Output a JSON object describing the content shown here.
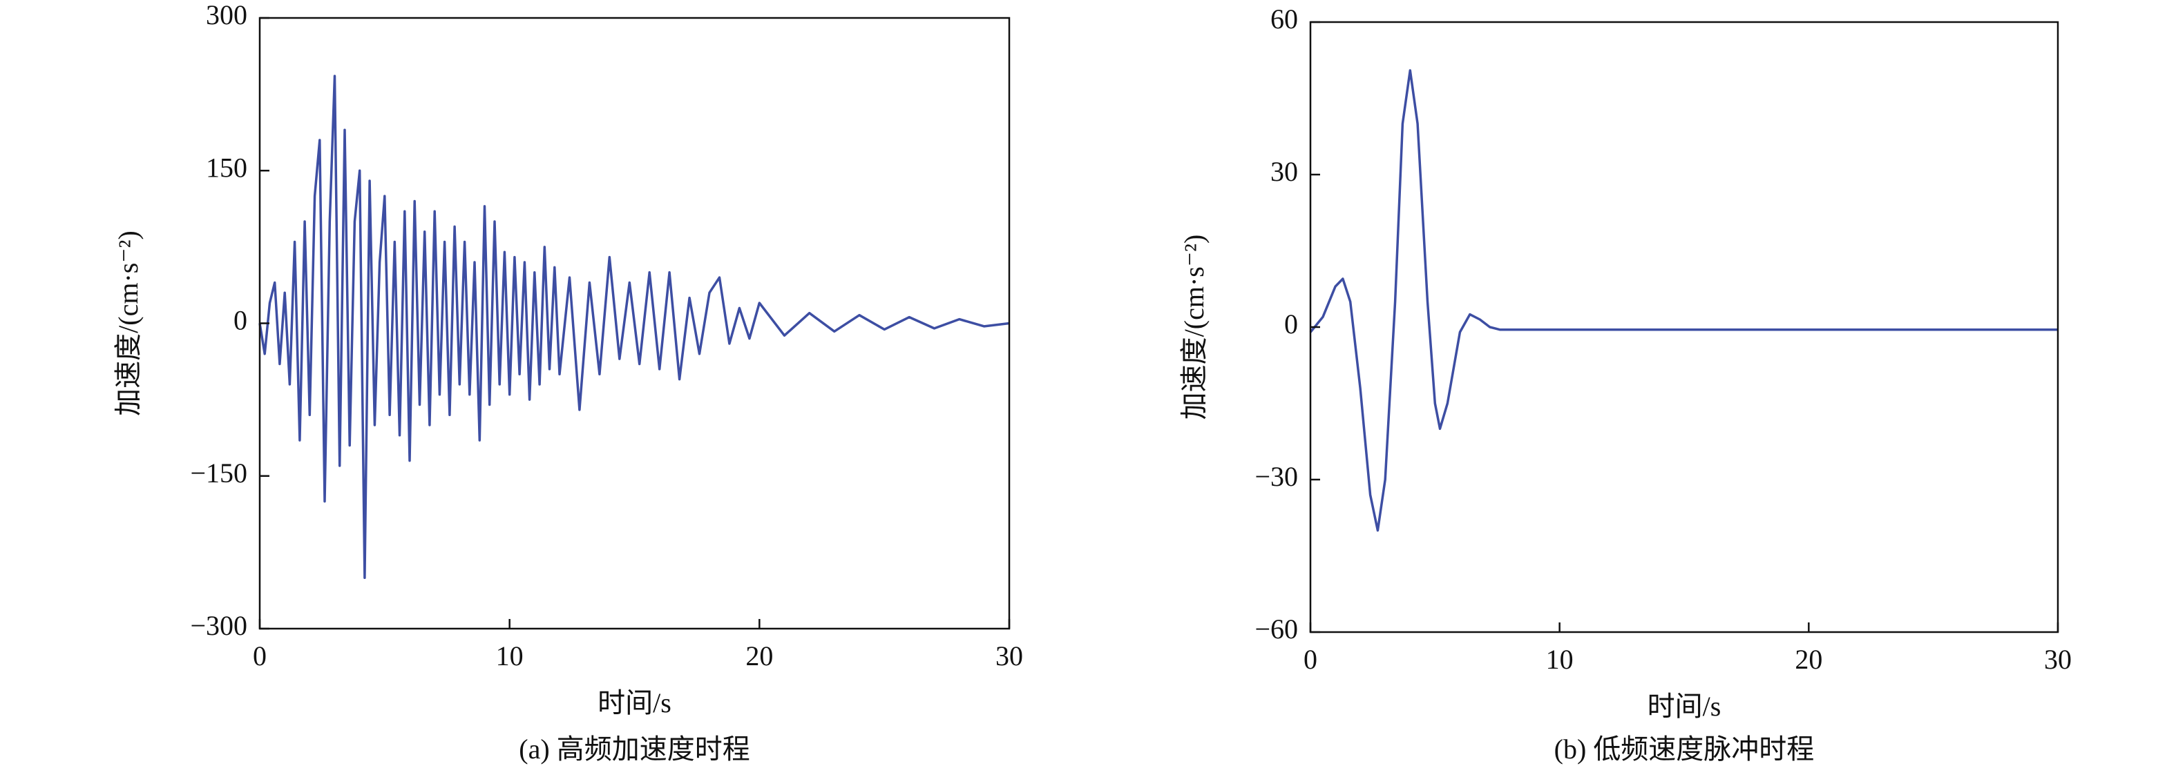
{
  "chart_data": [
    {
      "type": "line",
      "caption": "(a) 高频加速度时程",
      "xlabel": "时间/s",
      "ylabel": "加速度/(cm·s⁻²)",
      "color": "#3d4ea3",
      "xlim": [
        0,
        30
      ],
      "xticks": [
        0,
        10,
        20,
        30
      ],
      "ylim": [
        -300,
        300
      ],
      "yticks": [
        300,
        150,
        0,
        {
          "value": -150,
          "label": "−150"
        },
        {
          "value": -300,
          "label": "−300"
        }
      ],
      "x": [
        0,
        0.2,
        0.4,
        0.6,
        0.8,
        1.0,
        1.2,
        1.4,
        1.6,
        1.8,
        2.0,
        2.2,
        2.4,
        2.6,
        2.8,
        3.0,
        3.2,
        3.4,
        3.6,
        3.8,
        4.0,
        4.2,
        4.4,
        4.6,
        4.8,
        5.0,
        5.2,
        5.4,
        5.6,
        5.8,
        6.0,
        6.2,
        6.4,
        6.6,
        6.8,
        7.0,
        7.2,
        7.4,
        7.6,
        7.8,
        8.0,
        8.2,
        8.4,
        8.6,
        8.8,
        9.0,
        9.2,
        9.4,
        9.6,
        9.8,
        10.0,
        10.2,
        10.4,
        10.6,
        10.8,
        11.0,
        11.2,
        11.4,
        11.6,
        11.8,
        12.0,
        12.4,
        12.8,
        13.2,
        13.6,
        14.0,
        14.4,
        14.8,
        15.2,
        15.6,
        16.0,
        16.4,
        16.8,
        17.2,
        17.6,
        18.0,
        18.4,
        18.8,
        19.2,
        19.6,
        20.0,
        21,
        22,
        23,
        24,
        25,
        26,
        27,
        28,
        29,
        30
      ],
      "values": [
        0,
        -30,
        20,
        40,
        -40,
        30,
        -60,
        80,
        -115,
        100,
        -90,
        125,
        180,
        -175,
        100,
        243,
        -140,
        190,
        -120,
        100,
        150,
        -250,
        140,
        -100,
        60,
        125,
        -90,
        80,
        -110,
        110,
        -135,
        120,
        -80,
        90,
        -100,
        110,
        -70,
        80,
        -90,
        95,
        -60,
        80,
        -70,
        60,
        -115,
        115,
        -80,
        100,
        -60,
        70,
        -70,
        65,
        -50,
        60,
        -75,
        50,
        -60,
        75,
        -45,
        55,
        -50,
        45,
        -85,
        40,
        -50,
        65,
        -35,
        40,
        -40,
        50,
        -45,
        50,
        -55,
        25,
        -30,
        30,
        45,
        -20,
        15,
        -15,
        20,
        -12,
        10,
        -8,
        8,
        -6,
        6,
        -5,
        4,
        -3,
        0
      ]
    },
    {
      "type": "line",
      "caption": "(b) 低频速度脉冲时程",
      "xlabel": "时间/s",
      "ylabel": "加速度/(cm·s⁻²)",
      "color": "#3d4ea3",
      "xlim": [
        0,
        30
      ],
      "xticks": [
        0,
        10,
        20,
        30
      ],
      "ylim": [
        -60,
        60
      ],
      "yticks": [
        60,
        30,
        0,
        {
          "value": -30,
          "label": "−30"
        },
        {
          "value": -60,
          "label": "−60"
        }
      ],
      "x": [
        0,
        0.5,
        1,
        1.3,
        1.6,
        2,
        2.4,
        2.7,
        3,
        3.4,
        3.7,
        4,
        4.3,
        4.7,
        5,
        5.2,
        5.5,
        6,
        6.4,
        6.8,
        7.2,
        7.6,
        8,
        10,
        15,
        20,
        25,
        30
      ],
      "values": [
        -1,
        2,
        8,
        9.5,
        5,
        -12,
        -33,
        -40,
        -30,
        5,
        40,
        50.5,
        40,
        5,
        -15,
        -20,
        -15,
        -1,
        2.5,
        1.5,
        0,
        -0.5,
        -0.5,
        -0.5,
        -0.5,
        -0.5,
        -0.5,
        -0.5
      ]
    }
  ]
}
